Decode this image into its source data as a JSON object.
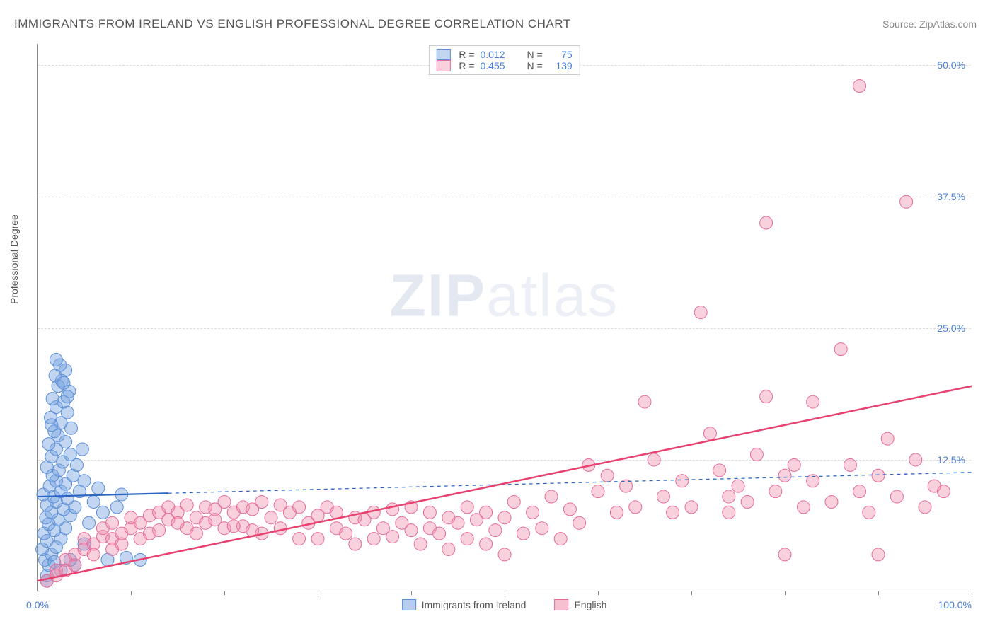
{
  "title": "IMMIGRANTS FROM IRELAND VS ENGLISH PROFESSIONAL DEGREE CORRELATION CHART",
  "source_label": "Source: ",
  "source_site": "ZipAtlas.com",
  "watermark_a": "ZIP",
  "watermark_b": "atlas",
  "ylabel": "Professional Degree",
  "chart": {
    "type": "scatter",
    "xlim": [
      0,
      100
    ],
    "ylim": [
      0,
      52
    ],
    "xticks": [
      0,
      10,
      20,
      30,
      40,
      50,
      60,
      70,
      80,
      90,
      100
    ],
    "xtick_labels": {
      "0": "0.0%",
      "100": "100.0%"
    },
    "yticks": [
      12.5,
      25.0,
      37.5,
      50.0
    ],
    "ytick_labels": [
      "12.5%",
      "25.0%",
      "37.5%",
      "50.0%"
    ],
    "grid_color": "#dddddd",
    "axis_color": "#888888",
    "marker_radius": 9,
    "series": [
      {
        "name": "Immigrants from Ireland",
        "fill": "rgba(120,165,225,0.45)",
        "stroke": "#5b8ed6",
        "R_label": "R =",
        "R": "0.012",
        "N_label": "N =",
        "N": "75",
        "trend": {
          "y0": 9.0,
          "y1": 11.3,
          "solid_until_x": 14,
          "stroke": "#2e66c4",
          "width": 2.2,
          "dash": "5,5"
        },
        "points": [
          [
            1.0,
            1.5
          ],
          [
            1.2,
            2.5
          ],
          [
            0.8,
            3.0
          ],
          [
            1.5,
            3.5
          ],
          [
            0.5,
            4.0
          ],
          [
            2.0,
            4.2
          ],
          [
            1.0,
            4.8
          ],
          [
            2.5,
            5.0
          ],
          [
            0.7,
            5.5
          ],
          [
            1.8,
            5.8
          ],
          [
            3.0,
            6.0
          ],
          [
            1.2,
            6.4
          ],
          [
            2.2,
            6.8
          ],
          [
            0.9,
            7.0
          ],
          [
            3.5,
            7.2
          ],
          [
            1.5,
            7.5
          ],
          [
            2.8,
            7.8
          ],
          [
            4.0,
            8.0
          ],
          [
            1.0,
            8.2
          ],
          [
            2.0,
            8.5
          ],
          [
            3.2,
            8.8
          ],
          [
            1.7,
            9.0
          ],
          [
            0.6,
            9.2
          ],
          [
            2.5,
            9.5
          ],
          [
            4.5,
            9.5
          ],
          [
            1.3,
            10.0
          ],
          [
            3.0,
            10.2
          ],
          [
            2.0,
            10.5
          ],
          [
            5.0,
            10.5
          ],
          [
            1.6,
            11.0
          ],
          [
            3.8,
            11.0
          ],
          [
            2.3,
            11.5
          ],
          [
            1.0,
            11.8
          ],
          [
            4.2,
            12.0
          ],
          [
            2.7,
            12.3
          ],
          [
            1.5,
            12.8
          ],
          [
            3.5,
            13.0
          ],
          [
            2.0,
            13.5
          ],
          [
            4.8,
            13.5
          ],
          [
            1.2,
            14.0
          ],
          [
            3.0,
            14.2
          ],
          [
            2.2,
            14.8
          ],
          [
            1.8,
            15.2
          ],
          [
            3.6,
            15.5
          ],
          [
            2.5,
            16.0
          ],
          [
            1.4,
            16.5
          ],
          [
            3.2,
            17.0
          ],
          [
            2.0,
            17.5
          ],
          [
            2.8,
            18.0
          ],
          [
            1.6,
            18.3
          ],
          [
            3.4,
            19.0
          ],
          [
            2.2,
            19.5
          ],
          [
            2.6,
            20.0
          ],
          [
            1.9,
            20.5
          ],
          [
            3.0,
            21.0
          ],
          [
            2.4,
            21.5
          ],
          [
            2.0,
            22.0
          ],
          [
            2.8,
            19.8
          ],
          [
            3.2,
            18.5
          ],
          [
            1.5,
            15.8
          ],
          [
            6.0,
            8.5
          ],
          [
            7.0,
            7.5
          ],
          [
            8.5,
            8.0
          ],
          [
            9.0,
            9.2
          ],
          [
            5.5,
            6.5
          ],
          [
            6.5,
            9.8
          ],
          [
            7.5,
            3.0
          ],
          [
            9.5,
            3.2
          ],
          [
            11.0,
            3.0
          ],
          [
            4.0,
            2.5
          ],
          [
            5.0,
            4.5
          ],
          [
            3.5,
            3.0
          ],
          [
            2.5,
            2.0
          ],
          [
            1.8,
            2.8
          ],
          [
            1.0,
            1.0
          ]
        ]
      },
      {
        "name": "English",
        "fill": "rgba(240,140,170,0.40)",
        "stroke": "#e76a9a",
        "R_label": "R =",
        "R": "0.455",
        "N_label": "N =",
        "N": "139",
        "trend": {
          "y0": 1.0,
          "y1": 19.5,
          "solid_until_x": 100,
          "stroke": "#e8416f",
          "width": 2.5,
          "dash": null
        },
        "points": [
          [
            2,
            2.0
          ],
          [
            3,
            3.0
          ],
          [
            4,
            3.5
          ],
          [
            5,
            4.0
          ],
          [
            5,
            5.0
          ],
          [
            6,
            4.5
          ],
          [
            7,
            5.2
          ],
          [
            7,
            6.0
          ],
          [
            8,
            5.0
          ],
          [
            8,
            6.5
          ],
          [
            9,
            5.5
          ],
          [
            10,
            6.0
          ],
          [
            10,
            7.0
          ],
          [
            11,
            6.5
          ],
          [
            12,
            7.2
          ],
          [
            12,
            5.5
          ],
          [
            13,
            7.5
          ],
          [
            14,
            6.8
          ],
          [
            14,
            8.0
          ],
          [
            15,
            7.5
          ],
          [
            16,
            6.0
          ],
          [
            16,
            8.2
          ],
          [
            17,
            7.0
          ],
          [
            18,
            8.0
          ],
          [
            18,
            6.5
          ],
          [
            19,
            7.8
          ],
          [
            20,
            8.5
          ],
          [
            20,
            6.0
          ],
          [
            21,
            7.5
          ],
          [
            22,
            8.0
          ],
          [
            22,
            6.2
          ],
          [
            23,
            7.8
          ],
          [
            24,
            5.5
          ],
          [
            24,
            8.5
          ],
          [
            25,
            7.0
          ],
          [
            26,
            6.0
          ],
          [
            26,
            8.2
          ],
          [
            27,
            7.5
          ],
          [
            28,
            5.0
          ],
          [
            28,
            8.0
          ],
          [
            29,
            6.5
          ],
          [
            30,
            7.2
          ],
          [
            30,
            5.0
          ],
          [
            31,
            8.0
          ],
          [
            32,
            6.0
          ],
          [
            32,
            7.5
          ],
          [
            33,
            5.5
          ],
          [
            34,
            7.0
          ],
          [
            34,
            4.5
          ],
          [
            35,
            6.8
          ],
          [
            36,
            5.0
          ],
          [
            36,
            7.5
          ],
          [
            37,
            6.0
          ],
          [
            38,
            5.2
          ],
          [
            38,
            7.8
          ],
          [
            39,
            6.5
          ],
          [
            40,
            5.8
          ],
          [
            40,
            8.0
          ],
          [
            41,
            4.5
          ],
          [
            42,
            6.0
          ],
          [
            42,
            7.5
          ],
          [
            43,
            5.5
          ],
          [
            44,
            7.0
          ],
          [
            44,
            4.0
          ],
          [
            45,
            6.5
          ],
          [
            46,
            5.0
          ],
          [
            46,
            8.0
          ],
          [
            47,
            6.8
          ],
          [
            48,
            7.5
          ],
          [
            48,
            4.5
          ],
          [
            49,
            5.8
          ],
          [
            50,
            7.0
          ],
          [
            50,
            3.5
          ],
          [
            51,
            8.5
          ],
          [
            52,
            5.5
          ],
          [
            53,
            7.5
          ],
          [
            54,
            6.0
          ],
          [
            55,
            9.0
          ],
          [
            56,
            5.0
          ],
          [
            57,
            7.8
          ],
          [
            58,
            6.5
          ],
          [
            59,
            12.0
          ],
          [
            60,
            9.5
          ],
          [
            61,
            11.0
          ],
          [
            62,
            7.5
          ],
          [
            63,
            10.0
          ],
          [
            64,
            8.0
          ],
          [
            65,
            18.0
          ],
          [
            66,
            12.5
          ],
          [
            67,
            9.0
          ],
          [
            68,
            7.5
          ],
          [
            69,
            10.5
          ],
          [
            70,
            8.0
          ],
          [
            71,
            26.5
          ],
          [
            72,
            15.0
          ],
          [
            73,
            11.5
          ],
          [
            74,
            9.0
          ],
          [
            74,
            7.5
          ],
          [
            75,
            10.0
          ],
          [
            76,
            8.5
          ],
          [
            77,
            13.0
          ],
          [
            78,
            18.5
          ],
          [
            78,
            35.0
          ],
          [
            79,
            9.5
          ],
          [
            80,
            11.0
          ],
          [
            80,
            3.5
          ],
          [
            81,
            12.0
          ],
          [
            82,
            8.0
          ],
          [
            83,
            10.5
          ],
          [
            83,
            18.0
          ],
          [
            85,
            8.5
          ],
          [
            86,
            23.0
          ],
          [
            87,
            12.0
          ],
          [
            88,
            48.0
          ],
          [
            88,
            9.5
          ],
          [
            89,
            7.5
          ],
          [
            90,
            11.0
          ],
          [
            90,
            3.5
          ],
          [
            91,
            14.5
          ],
          [
            92,
            9.0
          ],
          [
            93,
            37.0
          ],
          [
            94,
            12.5
          ],
          [
            95,
            8.0
          ],
          [
            96,
            10.0
          ],
          [
            97,
            9.5
          ],
          [
            2,
            1.5
          ],
          [
            3,
            2.0
          ],
          [
            1,
            1.0
          ],
          [
            4,
            2.5
          ],
          [
            6,
            3.5
          ],
          [
            8,
            4.0
          ],
          [
            9,
            4.5
          ],
          [
            11,
            5.0
          ],
          [
            13,
            5.8
          ],
          [
            15,
            6.5
          ],
          [
            17,
            5.5
          ],
          [
            19,
            6.8
          ],
          [
            21,
            6.2
          ],
          [
            23,
            5.8
          ]
        ]
      }
    ],
    "bottom_legend": [
      {
        "label": "Immigrants from Ireland",
        "fill": "rgba(120,165,225,0.55)",
        "stroke": "#5b8ed6"
      },
      {
        "label": "English",
        "fill": "rgba(240,140,170,0.55)",
        "stroke": "#e76a9a"
      }
    ]
  }
}
